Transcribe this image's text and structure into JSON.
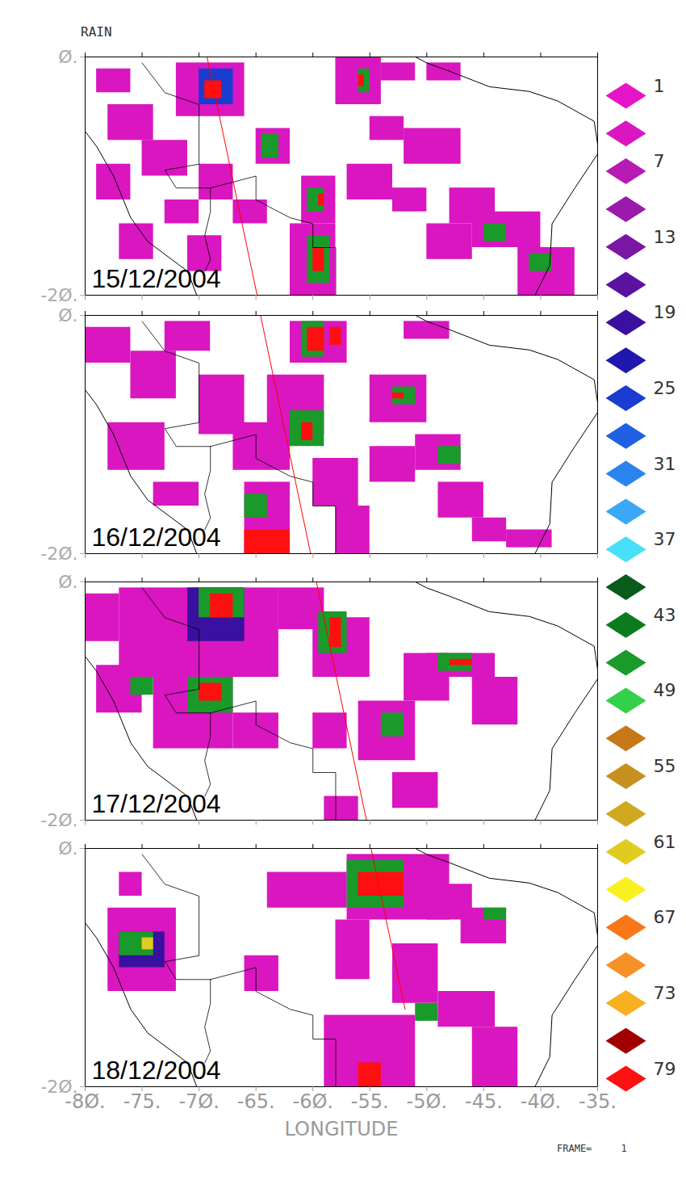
{
  "chart_data": {
    "type": "map",
    "title": "RAIN",
    "x_label": "LONGITUDE",
    "footer": "FRAME=     1",
    "xlim": [
      -80,
      -35
    ],
    "xticks": [
      {
        "value": -80,
        "label": "-8Ø."
      },
      {
        "value": -75,
        "label": "-75."
      },
      {
        "value": -70,
        "label": "-7Ø."
      },
      {
        "value": -65,
        "label": "-65."
      },
      {
        "value": -60,
        "label": "-6Ø."
      },
      {
        "value": -55,
        "label": "-55."
      },
      {
        "value": -50,
        "label": "-5Ø."
      },
      {
        "value": -45,
        "label": "-45."
      },
      {
        "value": -40,
        "label": "-4Ø."
      },
      {
        "value": -35,
        "label": "-35."
      }
    ],
    "ylim": [
      -20,
      0
    ],
    "yticks": [
      {
        "value": 0,
        "label": "Ø."
      },
      {
        "value": -20,
        "label": "-2Ø."
      }
    ],
    "color_bar": {
      "values": [
        1,
        4,
        7,
        10,
        13,
        16,
        19,
        22,
        25,
        28,
        31,
        34,
        37,
        40,
        43,
        46,
        49,
        52,
        55,
        58,
        61,
        64,
        67,
        70,
        73,
        76,
        79
      ],
      "colors": [
        "#e614c8",
        "#d916c0",
        "#b81ab4",
        "#9a1aac",
        "#7a16a4",
        "#5a12a0",
        "#3a10a0",
        "#1e18b0",
        "#1a3cd0",
        "#2060e4",
        "#2a84ee",
        "#3aa8f4",
        "#48e0f8",
        "#0a5a1a",
        "#0e7a1e",
        "#1a9a2a",
        "#33d04a",
        "#c87818",
        "#c89020",
        "#d0a820",
        "#e0cc20",
        "#f8f020",
        "#f87818",
        "#f89028",
        "#f8b020",
        "#a00000",
        "#ff1010"
      ],
      "ticks": [
        1,
        7,
        13,
        19,
        25,
        31,
        37,
        43,
        49,
        55,
        61,
        67,
        73,
        79
      ]
    },
    "coastline": [
      [
        [
          -80,
          -0.5
        ],
        [
          -81,
          -5
        ],
        [
          -79,
          -7.5
        ],
        [
          -77.5,
          -10
        ],
        [
          -76,
          -13.5
        ],
        [
          -74.5,
          -15.5
        ],
        [
          -71,
          -18
        ],
        [
          -70.2,
          -20
        ]
      ],
      [
        [
          -51,
          0
        ],
        [
          -50,
          -0.5
        ],
        [
          -48,
          -1.2
        ],
        [
          -44.5,
          -2.5
        ],
        [
          -41,
          -2.9
        ],
        [
          -38.5,
          -3.7
        ],
        [
          -35.3,
          -5.4
        ],
        [
          -34.9,
          -8
        ],
        [
          -37,
          -11
        ],
        [
          -39,
          -14
        ],
        [
          -39.2,
          -17.5
        ],
        [
          -40.5,
          -20
        ]
      ]
    ],
    "borders": [
      [
        [
          -75,
          -0.5
        ],
        [
          -73,
          -3
        ],
        [
          -70,
          -4
        ],
        [
          -70,
          -9
        ],
        [
          -73,
          -9.5
        ],
        [
          -72,
          -11
        ],
        [
          -69,
          -11
        ]
      ],
      [
        [
          -69,
          -11
        ],
        [
          -65,
          -10
        ],
        [
          -65,
          -12
        ],
        [
          -62,
          -13.5
        ],
        [
          -60,
          -14
        ],
        [
          -60,
          -16
        ],
        [
          -58,
          -16
        ],
        [
          -58,
          -18
        ],
        [
          -58,
          -20
        ]
      ],
      [
        [
          -69,
          -11
        ],
        [
          -69,
          -13
        ],
        [
          -69.5,
          -15
        ],
        [
          -69,
          -17
        ],
        [
          -69.5,
          -18
        ]
      ]
    ],
    "panels": [
      {
        "date": "15/12/2004",
        "track": {
          "color": "#ff0000",
          "points": [
            [
              -69.3,
              0
            ],
            [
              -64.9,
              -20
            ]
          ]
        },
        "patches": [
          [
            -72,
            -66,
            -0.5,
            -5,
            4
          ],
          [
            -79,
            -76,
            -1,
            -3,
            4
          ],
          [
            -78,
            -74,
            -4,
            -7,
            4
          ],
          [
            -75,
            -71,
            -7,
            -10,
            4
          ],
          [
            -79,
            -76,
            -9,
            -12,
            4
          ],
          [
            -73,
            -70,
            -12,
            -14,
            4
          ],
          [
            -77,
            -74,
            -14,
            -17,
            4
          ],
          [
            -71,
            -68,
            -15,
            -18,
            4
          ],
          [
            -70,
            -67,
            -9,
            -12,
            4
          ],
          [
            -65,
            -62,
            -6,
            -9,
            4
          ],
          [
            -61,
            -58,
            -10,
            -14,
            4
          ],
          [
            -62,
            -58,
            -14,
            -20,
            4
          ],
          [
            -67,
            -64,
            -12,
            -14,
            4
          ],
          [
            -58,
            -54,
            0,
            -4,
            4
          ],
          [
            -54,
            -51,
            -0.5,
            -2,
            4
          ],
          [
            -50,
            -47,
            -0.5,
            -2,
            4
          ],
          [
            -55,
            -52,
            -5,
            -7,
            4
          ],
          [
            -57,
            -53,
            -9,
            -12,
            4
          ],
          [
            -52,
            -47,
            -6,
            -9,
            4
          ],
          [
            -48,
            -44,
            -11,
            -14,
            4
          ],
          [
            -46,
            -40,
            -13,
            -16,
            4
          ],
          [
            -42,
            -37,
            -16,
            -20,
            4
          ],
          [
            -50,
            -46,
            -14,
            -17,
            4
          ],
          [
            -53,
            -50,
            -11,
            -13,
            4
          ],
          [
            -70,
            -67,
            -1,
            -4,
            25
          ],
          [
            -64.5,
            -63,
            -6.5,
            -8.5,
            46
          ],
          [
            -60.5,
            -59,
            -11,
            -13,
            46
          ],
          [
            -60.5,
            -58.5,
            -15,
            -19,
            46
          ],
          [
            -56,
            -55,
            -1,
            -3,
            46
          ],
          [
            -45,
            -43,
            -14,
            -15.5,
            46
          ],
          [
            -41,
            -39,
            -16.5,
            -18,
            46
          ],
          [
            -69.5,
            -68,
            -2,
            -3.5,
            79
          ],
          [
            -60,
            -59,
            -16,
            -18,
            79
          ],
          [
            -59.5,
            -59,
            -11.5,
            -12.5,
            79
          ],
          [
            -56,
            -55.5,
            -1.5,
            -2.5,
            79
          ]
        ]
      },
      {
        "date": "16/12/2004",
        "track": {
          "color": "#ff0000",
          "points": [
            [
              -64.6,
              0
            ],
            [
              -60.2,
              -20
            ]
          ]
        },
        "patches": [
          [
            -80,
            -76,
            -1,
            -4,
            4
          ],
          [
            -76,
            -72,
            -3,
            -7,
            4
          ],
          [
            -73,
            -69,
            -0.5,
            -3,
            4
          ],
          [
            -70,
            -66,
            -5,
            -10,
            4
          ],
          [
            -67,
            -62,
            -9,
            -13,
            4
          ],
          [
            -64,
            -59,
            -5,
            -10,
            4
          ],
          [
            -62,
            -57,
            -0.5,
            -4,
            4
          ],
          [
            -60,
            -56,
            -12,
            -16,
            4
          ],
          [
            -66,
            -62,
            -14,
            -20,
            4
          ],
          [
            -78,
            -73,
            -9,
            -13,
            4
          ],
          [
            -74,
            -70,
            -14,
            -16,
            4
          ],
          [
            -55,
            -50,
            -5,
            -9,
            4
          ],
          [
            -55,
            -51,
            -11,
            -14,
            4
          ],
          [
            -51,
            -47,
            -10,
            -13,
            4
          ],
          [
            -49,
            -45,
            -14,
            -17,
            4
          ],
          [
            -46,
            -43,
            -17,
            -19,
            4
          ],
          [
            -43,
            -39,
            -18,
            -19.5,
            4
          ],
          [
            -52,
            -48,
            -0.5,
            -2,
            4
          ],
          [
            -58,
            -55,
            -16,
            -20,
            4
          ],
          [
            -61,
            -59,
            -0.5,
            -3.5,
            46
          ],
          [
            -62,
            -59,
            -8,
            -11,
            46
          ],
          [
            -66,
            -64,
            -15,
            -17,
            46
          ],
          [
            -53,
            -51,
            -6,
            -7.5,
            46
          ],
          [
            -49,
            -47,
            -11,
            -12.5,
            46
          ],
          [
            -60.5,
            -59,
            -1,
            -3,
            79
          ],
          [
            -58.5,
            -57.5,
            -1,
            -2.5,
            79
          ],
          [
            -61,
            -60,
            -9,
            -10.5,
            79
          ],
          [
            -66,
            -62,
            -18,
            -20,
            79
          ],
          [
            -53,
            -52,
            -6.5,
            -7,
            79
          ]
        ]
      },
      {
        "date": "17/12/2004",
        "track": {
          "color": "#ff0000",
          "points": [
            [
              -59.7,
              0
            ],
            [
              -55.3,
              -20
            ]
          ]
        },
        "patches": [
          [
            -80,
            -77,
            -1,
            -5,
            4
          ],
          [
            -77,
            -63,
            -0.5,
            -8,
            4
          ],
          [
            -74,
            -67,
            -8,
            -14,
            4
          ],
          [
            -79,
            -75,
            -7,
            -11,
            4
          ],
          [
            -67,
            -63,
            -11,
            -14,
            4
          ],
          [
            -63,
            -59,
            -0.5,
            -4,
            4
          ],
          [
            -60,
            -55,
            -3,
            -8,
            4
          ],
          [
            -60,
            -57,
            -11,
            -14,
            4
          ],
          [
            -56,
            -51,
            -10,
            -15,
            4
          ],
          [
            -52,
            -48,
            -6,
            -10,
            4
          ],
          [
            -50,
            -44,
            -6,
            -8,
            4
          ],
          [
            -46,
            -42,
            -8,
            -12,
            4
          ],
          [
            -53,
            -49,
            -16,
            -19,
            4
          ],
          [
            -59,
            -56,
            -18,
            -20,
            4
          ],
          [
            -71,
            -66,
            -0.5,
            -5,
            19
          ],
          [
            -70,
            -66,
            -0.5,
            -3,
            46
          ],
          [
            -71,
            -67,
            -8,
            -11,
            46
          ],
          [
            -76,
            -74,
            -8,
            -9.5,
            46
          ],
          [
            -59.5,
            -57,
            -2.5,
            -6,
            46
          ],
          [
            -49,
            -46,
            -6,
            -7.5,
            46
          ],
          [
            -54,
            -52,
            -11,
            -13,
            46
          ],
          [
            -69,
            -67,
            -1,
            -3,
            79
          ],
          [
            -70,
            -68,
            -8.5,
            -10,
            79
          ],
          [
            -58.5,
            -57.5,
            -3,
            -5.5,
            79
          ],
          [
            -48,
            -46,
            -6.5,
            -7,
            79
          ]
        ]
      },
      {
        "date": "18/12/2004",
        "track": {
          "color": "#ff0000",
          "points": [
            [
              -54.9,
              0
            ],
            [
              -51.9,
              -13.5
            ]
          ]
        },
        "patches": [
          [
            -78,
            -72,
            -5,
            -12,
            4
          ],
          [
            -77,
            -75,
            -2,
            -4,
            4
          ],
          [
            -64,
            -57,
            -2,
            -5,
            4
          ],
          [
            -57,
            -48,
            -0.5,
            -6,
            4
          ],
          [
            -50,
            -46,
            -3,
            -6,
            4
          ],
          [
            -47,
            -43,
            -5,
            -8,
            4
          ],
          [
            -58,
            -55,
            -6,
            -11,
            4
          ],
          [
            -53,
            -49,
            -8,
            -13,
            4
          ],
          [
            -49,
            -44,
            -12,
            -15,
            4
          ],
          [
            -46,
            -42,
            -15,
            -20,
            4
          ],
          [
            -59,
            -51,
            -14,
            -20,
            4
          ],
          [
            -66,
            -63,
            -9,
            -12,
            4
          ],
          [
            -77,
            -73,
            -7,
            -10,
            19
          ],
          [
            -77,
            -74,
            -7,
            -9,
            46
          ],
          [
            -57,
            -52,
            -1,
            -5,
            46
          ],
          [
            -45,
            -43,
            -5,
            -6,
            46
          ],
          [
            -51,
            -49,
            -13,
            -14.5,
            46
          ],
          [
            -56,
            -52,
            -2,
            -4,
            79
          ],
          [
            -56,
            -54,
            -18,
            -20,
            79
          ],
          [
            -75,
            -74,
            -7.5,
            -8.5,
            61
          ]
        ]
      }
    ]
  }
}
